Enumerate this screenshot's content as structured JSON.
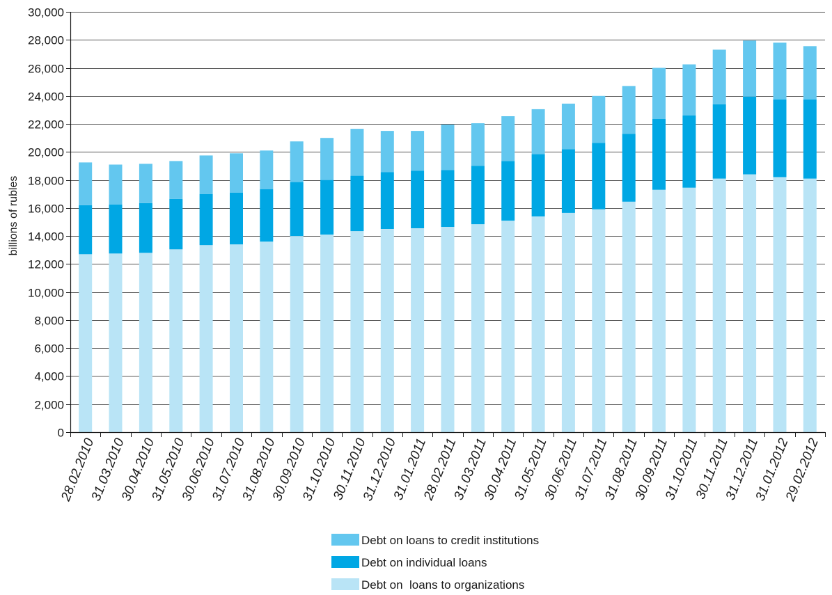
{
  "chart_data": {
    "type": "bar",
    "stacked": true,
    "title": "",
    "xlabel": "",
    "ylabel": "billions of rubles",
    "ylim": [
      0,
      30000
    ],
    "yticks": [
      0,
      2000,
      4000,
      6000,
      8000,
      10000,
      12000,
      14000,
      16000,
      18000,
      20000,
      22000,
      24000,
      26000,
      28000,
      30000
    ],
    "ytick_labels": [
      "0",
      "2,000",
      "4,000",
      "6,000",
      "8,000",
      "10,000",
      "12,000",
      "14,000",
      "16,000",
      "18,000",
      "20,000",
      "22,000",
      "24,000",
      "26,000",
      "28,000",
      "30,000"
    ],
    "grid": true,
    "legend_position": "bottom",
    "categories": [
      "28.02.2010",
      "31.03.2010",
      "30.04.2010",
      "31.05.2010",
      "30.06.2010",
      "31.07.2010",
      "31.08.2010",
      "30.09.2010",
      "31.10.2010",
      "30.11.2010",
      "31.12.2010",
      "31.01.2011",
      "28.02.2011",
      "31.03.2011",
      "30.04.2011",
      "31.05.2011",
      "30.06.2011",
      "31.07.2011",
      "31.08.2011",
      "30.09.2011",
      "31.10.2011",
      "30.11.2011",
      "31.12.2011",
      "31.01.2012",
      "29.02.2012"
    ],
    "series": [
      {
        "name": "Debt on  loans to organizations",
        "color": "#b9e4f6",
        "values": [
          12700,
          12750,
          12800,
          13050,
          13350,
          13400,
          13600,
          14000,
          14100,
          14350,
          14500,
          14550,
          14650,
          14850,
          15100,
          15400,
          15650,
          15900,
          16450,
          17300,
          17450,
          18100,
          18400,
          18200,
          18100
        ]
      },
      {
        "name": "Debt on individual loans",
        "color": "#00a7e4",
        "values": [
          3500,
          3500,
          3550,
          3600,
          3650,
          3700,
          3750,
          3850,
          3900,
          3950,
          4050,
          4100,
          4050,
          4150,
          4250,
          4450,
          4550,
          4750,
          4850,
          5050,
          5150,
          5300,
          5550,
          5550,
          5650
        ]
      },
      {
        "name": "Debt on loans to credit institutions",
        "color": "#63c7ef",
        "values": [
          3050,
          2850,
          2800,
          2700,
          2750,
          2800,
          2750,
          2900,
          3000,
          3350,
          2950,
          2850,
          3250,
          3050,
          3200,
          3200,
          3250,
          3350,
          3400,
          3650,
          3650,
          3900,
          4000,
          4050,
          3800
        ]
      }
    ]
  }
}
